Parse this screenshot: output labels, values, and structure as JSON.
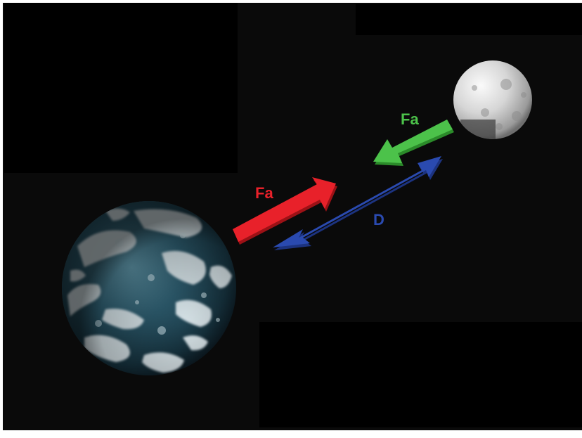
{
  "diagram": {
    "labels": {
      "earth_to_moon_force": "Fa",
      "moon_to_earth_force": "Fa",
      "distance": "D"
    },
    "colors": {
      "background": "#0a0a0a",
      "black_panel": "#000000",
      "red_arrow": "#e8212a",
      "green_arrow": "#4cc24a",
      "blue_arrow": "#2a4ab0",
      "earth_ocean": "#2c5a6c",
      "earth_cloud": "#e8f2f6",
      "moon_surface": "#d9d9d9"
    },
    "objects": {
      "planet": "earth",
      "satellite": "moon"
    }
  }
}
